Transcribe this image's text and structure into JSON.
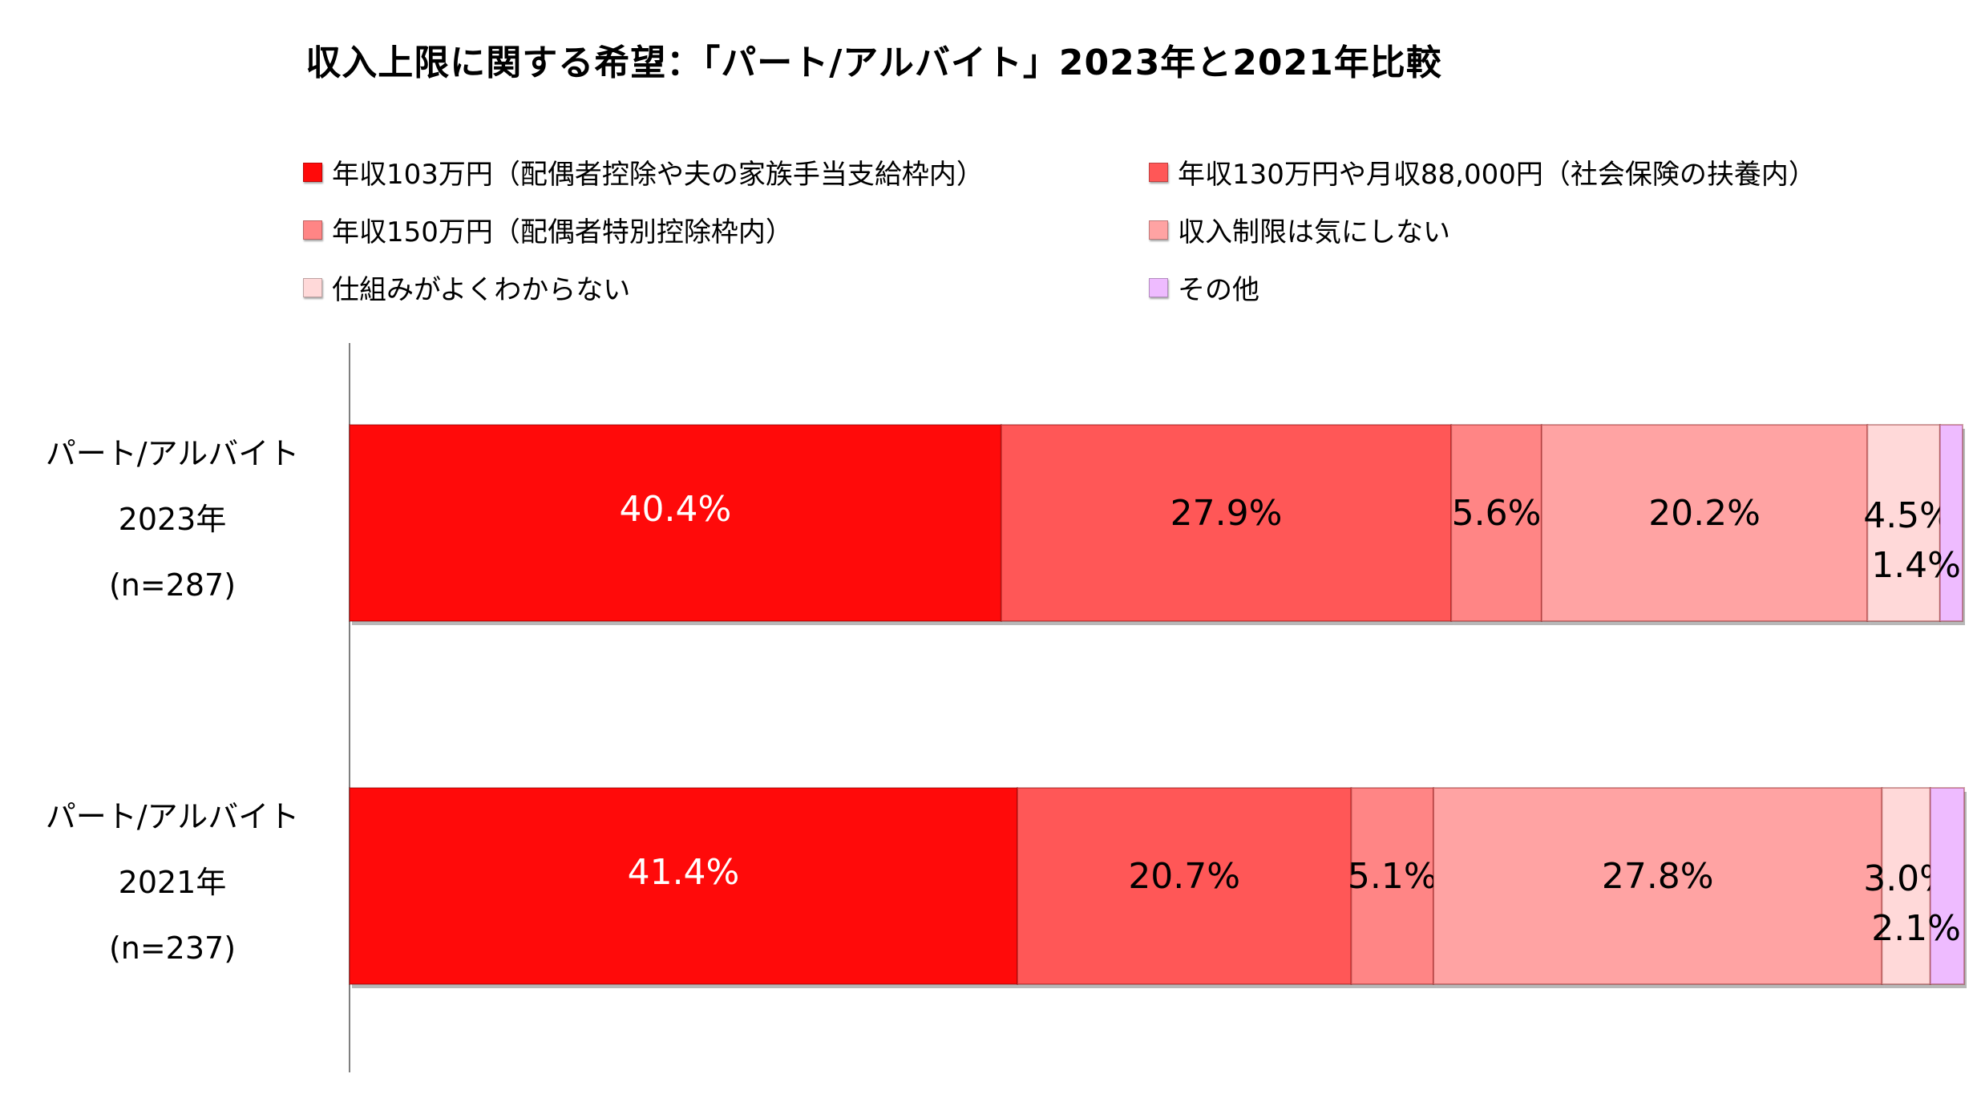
{
  "chart_data": {
    "type": "bar",
    "orientation": "horizontal",
    "stacked": "percent",
    "title": "収入上限に関する希望：「パート/アルバイト」2023年と2021年比較",
    "categories": [
      [
        "パート/アルバイト",
        "2023年",
        "(n=287)"
      ],
      [
        "パート/アルバイト",
        "2021年",
        "(n=237)"
      ]
    ],
    "series": [
      {
        "name": "年収103万円（配偶者控除や夫の家族手当支給枠内）",
        "color": "#ff0a0a",
        "values": [
          40.4,
          41.4
        ],
        "labels": [
          "40.4%",
          "41.4%"
        ]
      },
      {
        "name": "年収130万円や月収88,000円（社会保険の扶養内）",
        "color": "#ff5757",
        "values": [
          27.9,
          20.7
        ],
        "labels": [
          "27.9%",
          "20.7%"
        ]
      },
      {
        "name": "年収150万円（配偶者特別控除枠内）",
        "color": "#ff8585",
        "values": [
          5.6,
          5.1
        ],
        "labels": [
          "5.6%",
          "5.1%"
        ]
      },
      {
        "name": "収入制限は気にしない",
        "color": "#ffa3a3",
        "values": [
          20.2,
          27.8
        ],
        "labels": [
          "20.2%",
          "27.8%"
        ]
      },
      {
        "name": "仕組みがよくわからない",
        "color": "#ffd9d9",
        "values": [
          4.5,
          3.0
        ],
        "labels": [
          "4.5%",
          "3.0%"
        ]
      },
      {
        "name": "その他",
        "color": "#eebbff",
        "values": [
          1.4,
          2.1
        ],
        "labels": [
          "1.4%",
          "2.1%"
        ]
      }
    ],
    "xlim": [
      0,
      100
    ],
    "legend": "top",
    "grid": false
  }
}
